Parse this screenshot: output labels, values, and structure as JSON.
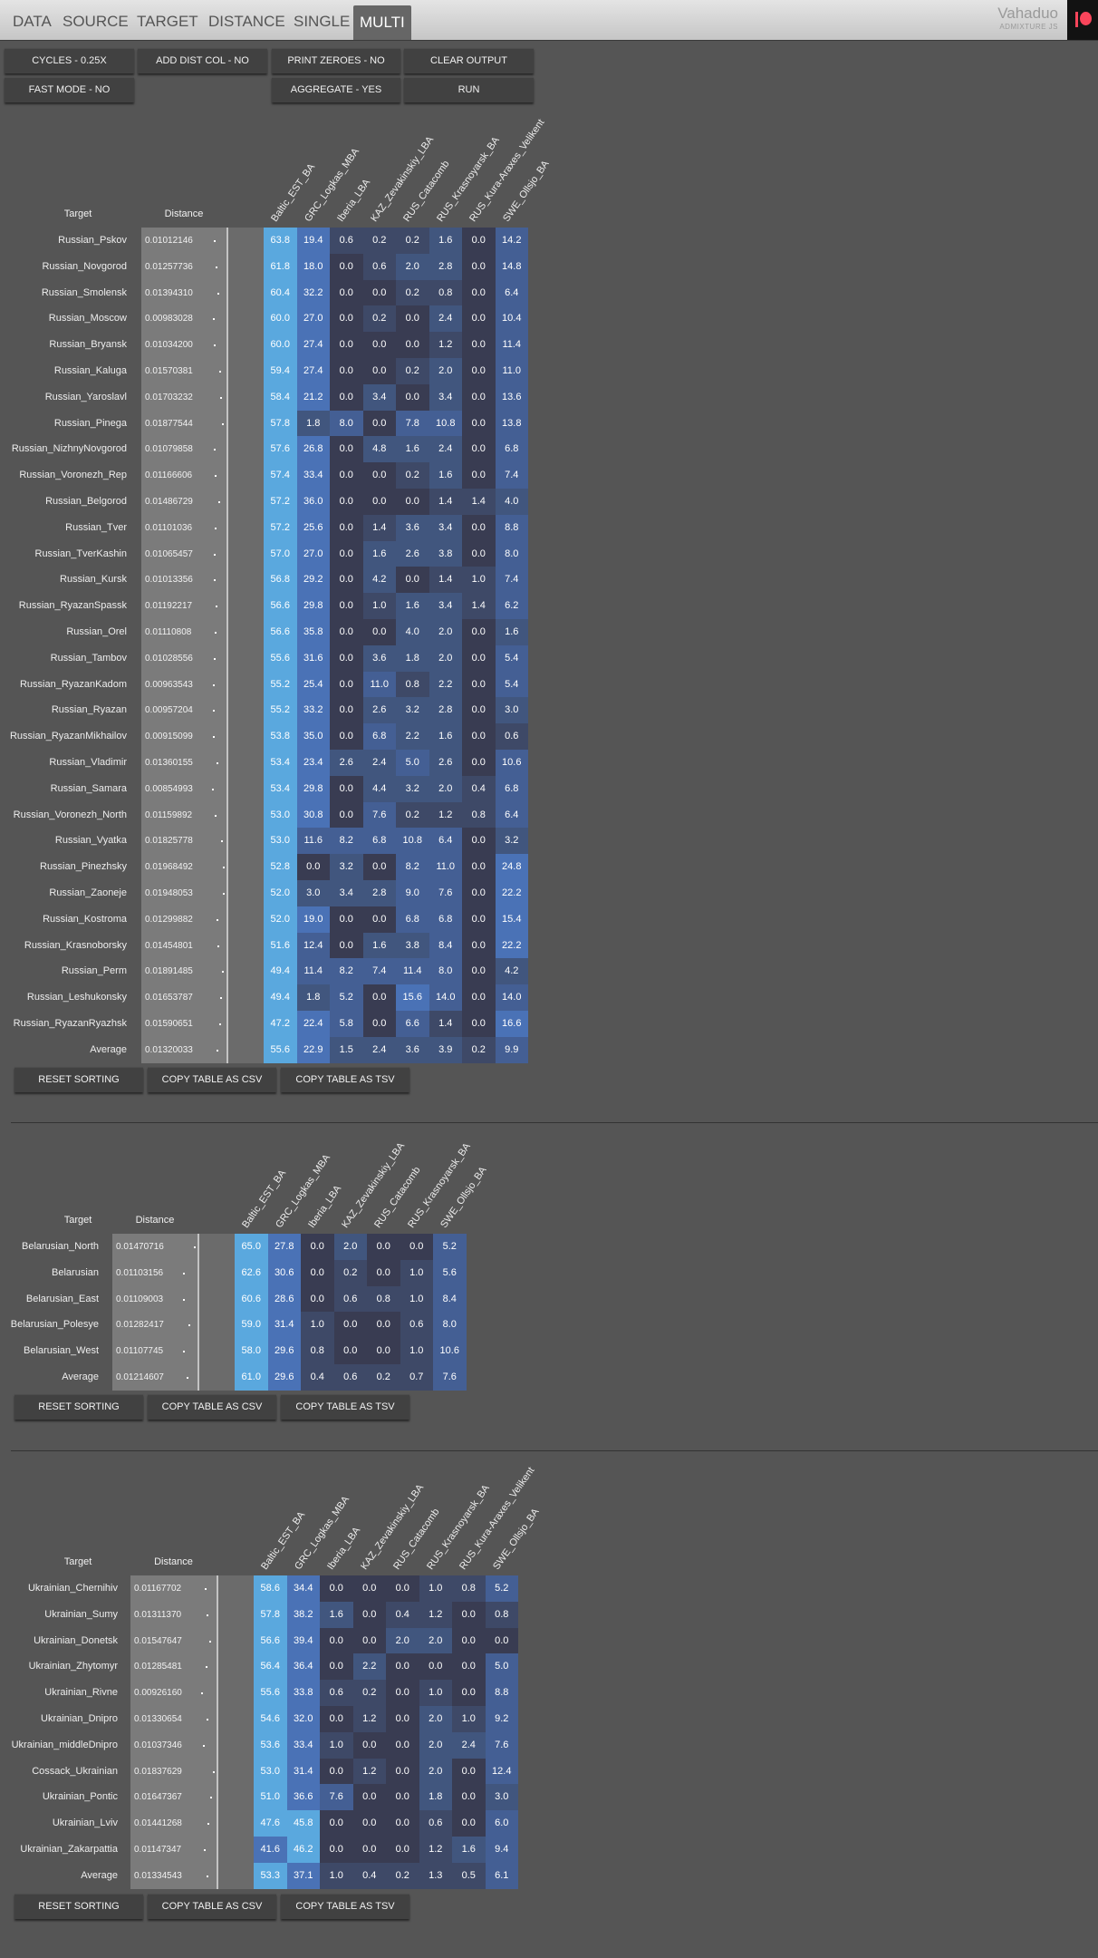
{
  "nav": {
    "tabs": [
      "DATA",
      "SOURCE",
      "TARGET",
      "DISTANCE",
      "SINGLE",
      "MULTI"
    ],
    "active": "MULTI",
    "brand": "Vahaduo",
    "brand_sub": "ADMIXTURE JS"
  },
  "controls": {
    "cycles": "CYCLES - 0.25X",
    "add_dist_col": "ADD DIST COL - NO",
    "print_zeroes": "PRINT ZEROES - NO",
    "clear_output": "CLEAR OUTPUT",
    "fast_mode": "FAST MODE - NO",
    "aggregate": "AGGREGATE - YES",
    "run": "RUN"
  },
  "labels": {
    "target": "Target",
    "distance": "Distance",
    "reset_sorting": "RESET SORTING",
    "copy_csv": "COPY TABLE AS CSV",
    "copy_tsv": "COPY TABLE AS TSV"
  },
  "colors": {
    "scale": [
      "#393c52",
      "#3e4967",
      "#41567e",
      "#445f94",
      "#4a72b6",
      "#5aa8de"
    ]
  },
  "tables": [
    {
      "columns": [
        "Baltic_EST_BA",
        "GRC_Logkas_MBA",
        "Iberia_LBA",
        "KAZ_Zevakinskiy_LBA",
        "RUS_Catacomb",
        "RUS_Krasnoyarsk_BA",
        "RUS_Kura-Araxes_Velikent",
        "SWE_Ollsjo_BA"
      ],
      "rows": [
        {
          "target": "Russian_Pskov",
          "distance": "0.01012146",
          "values": [
            "63.8",
            "19.4",
            "0.6",
            "0.2",
            "0.2",
            "1.6",
            "0.0",
            "14.2"
          ]
        },
        {
          "target": "Russian_Novgorod",
          "distance": "0.01257736",
          "values": [
            "61.8",
            "18.0",
            "0.0",
            "0.6",
            "2.0",
            "2.8",
            "0.0",
            "14.8"
          ]
        },
        {
          "target": "Russian_Smolensk",
          "distance": "0.01394310",
          "values": [
            "60.4",
            "32.2",
            "0.0",
            "0.0",
            "0.2",
            "0.8",
            "0.0",
            "6.4"
          ]
        },
        {
          "target": "Russian_Moscow",
          "distance": "0.00983028",
          "values": [
            "60.0",
            "27.0",
            "0.0",
            "0.2",
            "0.0",
            "2.4",
            "0.0",
            "10.4"
          ]
        },
        {
          "target": "Russian_Bryansk",
          "distance": "0.01034200",
          "values": [
            "60.0",
            "27.4",
            "0.0",
            "0.0",
            "0.0",
            "1.2",
            "0.0",
            "11.4"
          ]
        },
        {
          "target": "Russian_Kaluga",
          "distance": "0.01570381",
          "values": [
            "59.4",
            "27.4",
            "0.0",
            "0.0",
            "0.2",
            "2.0",
            "0.0",
            "11.0"
          ]
        },
        {
          "target": "Russian_Yaroslavl",
          "distance": "0.01703232",
          "values": [
            "58.4",
            "21.2",
            "0.0",
            "3.4",
            "0.0",
            "3.4",
            "0.0",
            "13.6"
          ]
        },
        {
          "target": "Russian_Pinega",
          "distance": "0.01877544",
          "values": [
            "57.8",
            "1.8",
            "8.0",
            "0.0",
            "7.8",
            "10.8",
            "0.0",
            "13.8"
          ]
        },
        {
          "target": "Russian_NizhnyNovgorod",
          "distance": "0.01079858",
          "values": [
            "57.6",
            "26.8",
            "0.0",
            "4.8",
            "1.6",
            "2.4",
            "0.0",
            "6.8"
          ]
        },
        {
          "target": "Russian_Voronezh_Rep",
          "distance": "0.01166606",
          "values": [
            "57.4",
            "33.4",
            "0.0",
            "0.0",
            "0.2",
            "1.6",
            "0.0",
            "7.4"
          ]
        },
        {
          "target": "Russian_Belgorod",
          "distance": "0.01486729",
          "values": [
            "57.2",
            "36.0",
            "0.0",
            "0.0",
            "0.0",
            "1.4",
            "1.4",
            "4.0"
          ]
        },
        {
          "target": "Russian_Tver",
          "distance": "0.01101036",
          "values": [
            "57.2",
            "25.6",
            "0.0",
            "1.4",
            "3.6",
            "3.4",
            "0.0",
            "8.8"
          ]
        },
        {
          "target": "Russian_TverKashin",
          "distance": "0.01065457",
          "values": [
            "57.0",
            "27.0",
            "0.0",
            "1.6",
            "2.6",
            "3.8",
            "0.0",
            "8.0"
          ]
        },
        {
          "target": "Russian_Kursk",
          "distance": "0.01013356",
          "values": [
            "56.8",
            "29.2",
            "0.0",
            "4.2",
            "0.0",
            "1.4",
            "1.0",
            "7.4"
          ]
        },
        {
          "target": "Russian_RyazanSpassk",
          "distance": "0.01192217",
          "values": [
            "56.6",
            "29.8",
            "0.0",
            "1.0",
            "1.6",
            "3.4",
            "1.4",
            "6.2"
          ]
        },
        {
          "target": "Russian_Orel",
          "distance": "0.01110808",
          "values": [
            "56.6",
            "35.8",
            "0.0",
            "0.0",
            "4.0",
            "2.0",
            "0.0",
            "1.6"
          ]
        },
        {
          "target": "Russian_Tambov",
          "distance": "0.01028556",
          "values": [
            "55.6",
            "31.6",
            "0.0",
            "3.6",
            "1.8",
            "2.0",
            "0.0",
            "5.4"
          ]
        },
        {
          "target": "Russian_RyazanKadom",
          "distance": "0.00963543",
          "values": [
            "55.2",
            "25.4",
            "0.0",
            "11.0",
            "0.8",
            "2.2",
            "0.0",
            "5.4"
          ]
        },
        {
          "target": "Russian_Ryazan",
          "distance": "0.00957204",
          "values": [
            "55.2",
            "33.2",
            "0.0",
            "2.6",
            "3.2",
            "2.8",
            "0.0",
            "3.0"
          ]
        },
        {
          "target": "Russian_RyazanMikhailov",
          "distance": "0.00915099",
          "values": [
            "53.8",
            "35.0",
            "0.0",
            "6.8",
            "2.2",
            "1.6",
            "0.0",
            "0.6"
          ]
        },
        {
          "target": "Russian_Vladimir",
          "distance": "0.01360155",
          "values": [
            "53.4",
            "23.4",
            "2.6",
            "2.4",
            "5.0",
            "2.6",
            "0.0",
            "10.6"
          ]
        },
        {
          "target": "Russian_Samara",
          "distance": "0.00854993",
          "values": [
            "53.4",
            "29.8",
            "0.0",
            "4.4",
            "3.2",
            "2.0",
            "0.4",
            "6.8"
          ]
        },
        {
          "target": "Russian_Voronezh_North",
          "distance": "0.01159892",
          "values": [
            "53.0",
            "30.8",
            "0.0",
            "7.6",
            "0.2",
            "1.2",
            "0.8",
            "6.4"
          ]
        },
        {
          "target": "Russian_Vyatka",
          "distance": "0.01825778",
          "values": [
            "53.0",
            "11.6",
            "8.2",
            "6.8",
            "10.8",
            "6.4",
            "0.0",
            "3.2"
          ]
        },
        {
          "target": "Russian_Pinezhsky",
          "distance": "0.01968492",
          "values": [
            "52.8",
            "0.0",
            "3.2",
            "0.0",
            "8.2",
            "11.0",
            "0.0",
            "24.8"
          ]
        },
        {
          "target": "Russian_Zaoneje",
          "distance": "0.01948053",
          "values": [
            "52.0",
            "3.0",
            "3.4",
            "2.8",
            "9.0",
            "7.6",
            "0.0",
            "22.2"
          ]
        },
        {
          "target": "Russian_Kostroma",
          "distance": "0.01299882",
          "values": [
            "52.0",
            "19.0",
            "0.0",
            "0.0",
            "6.8",
            "6.8",
            "0.0",
            "15.4"
          ]
        },
        {
          "target": "Russian_Krasnoborsky",
          "distance": "0.01454801",
          "values": [
            "51.6",
            "12.4",
            "0.0",
            "1.6",
            "3.8",
            "8.4",
            "0.0",
            "22.2"
          ]
        },
        {
          "target": "Russian_Perm",
          "distance": "0.01891485",
          "values": [
            "49.4",
            "11.4",
            "8.2",
            "7.4",
            "11.4",
            "8.0",
            "0.0",
            "4.2"
          ]
        },
        {
          "target": "Russian_Leshukonsky",
          "distance": "0.01653787",
          "values": [
            "49.4",
            "1.8",
            "5.2",
            "0.0",
            "15.6",
            "14.0",
            "0.0",
            "14.0"
          ]
        },
        {
          "target": "Russian_RyazanRyazhsk",
          "distance": "0.01590651",
          "values": [
            "47.2",
            "22.4",
            "5.8",
            "0.0",
            "6.6",
            "1.4",
            "0.0",
            "16.6"
          ]
        },
        {
          "target": "Average",
          "distance": "0.01320033",
          "values": [
            "55.6",
            "22.9",
            "1.5",
            "2.4",
            "3.6",
            "3.9",
            "0.2",
            "9.9"
          ]
        }
      ]
    },
    {
      "columns": [
        "Baltic_EST_BA",
        "GRC_Logkas_MBA",
        "Iberia_LBA",
        "KAZ_Zevakinskiy_LBA",
        "RUS_Catacomb",
        "RUS_Krasnoyarsk_BA",
        "SWE_Ollsjo_BA"
      ],
      "rows": [
        {
          "target": "Belarusian_North",
          "distance": "0.01470716",
          "values": [
            "65.0",
            "27.8",
            "0.0",
            "2.0",
            "0.0",
            "0.0",
            "5.2"
          ]
        },
        {
          "target": "Belarusian",
          "distance": "0.01103156",
          "values": [
            "62.6",
            "30.6",
            "0.0",
            "0.2",
            "0.0",
            "1.0",
            "5.6"
          ]
        },
        {
          "target": "Belarusian_East",
          "distance": "0.01109003",
          "values": [
            "60.6",
            "28.6",
            "0.0",
            "0.6",
            "0.8",
            "1.0",
            "8.4"
          ]
        },
        {
          "target": "Belarusian_Polesye",
          "distance": "0.01282417",
          "values": [
            "59.0",
            "31.4",
            "1.0",
            "0.0",
            "0.0",
            "0.6",
            "8.0"
          ]
        },
        {
          "target": "Belarusian_West",
          "distance": "0.01107745",
          "values": [
            "58.0",
            "29.6",
            "0.8",
            "0.0",
            "0.0",
            "1.0",
            "10.6"
          ]
        },
        {
          "target": "Average",
          "distance": "0.01214607",
          "values": [
            "61.0",
            "29.6",
            "0.4",
            "0.6",
            "0.2",
            "0.7",
            "7.6"
          ]
        }
      ]
    },
    {
      "columns": [
        "Baltic_EST_BA",
        "GRC_Logkas_MBA",
        "Iberia_LBA",
        "KAZ_Zevakinskiy_LBA",
        "RUS_Catacomb",
        "RUS_Krasnoyarsk_BA",
        "RUS_Kura-Araxes_Velikent",
        "SWE_Ollsjo_BA"
      ],
      "rows": [
        {
          "target": "Ukrainian_Chernihiv",
          "distance": "0.01167702",
          "values": [
            "58.6",
            "34.4",
            "0.0",
            "0.0",
            "0.0",
            "1.0",
            "0.8",
            "5.2"
          ]
        },
        {
          "target": "Ukrainian_Sumy",
          "distance": "0.01311370",
          "values": [
            "57.8",
            "38.2",
            "1.6",
            "0.0",
            "0.4",
            "1.2",
            "0.0",
            "0.8"
          ]
        },
        {
          "target": "Ukrainian_Donetsk",
          "distance": "0.01547647",
          "values": [
            "56.6",
            "39.4",
            "0.0",
            "0.0",
            "2.0",
            "2.0",
            "0.0",
            "0.0"
          ]
        },
        {
          "target": "Ukrainian_Zhytomyr",
          "distance": "0.01285481",
          "values": [
            "56.4",
            "36.4",
            "0.0",
            "2.2",
            "0.0",
            "0.0",
            "0.0",
            "5.0"
          ]
        },
        {
          "target": "Ukrainian_Rivne",
          "distance": "0.00926160",
          "values": [
            "55.6",
            "33.8",
            "0.6",
            "0.2",
            "0.0",
            "1.0",
            "0.0",
            "8.8"
          ]
        },
        {
          "target": "Ukrainian_Dnipro",
          "distance": "0.01330654",
          "values": [
            "54.6",
            "32.0",
            "0.0",
            "1.2",
            "0.0",
            "2.0",
            "1.0",
            "9.2"
          ]
        },
        {
          "target": "Ukrainian_middleDnipro",
          "distance": "0.01037346",
          "values": [
            "53.6",
            "33.4",
            "1.0",
            "0.0",
            "0.0",
            "2.0",
            "2.4",
            "7.6"
          ]
        },
        {
          "target": "Cossack_Ukrainian",
          "distance": "0.01837629",
          "values": [
            "53.0",
            "31.4",
            "0.0",
            "1.2",
            "0.0",
            "2.0",
            "0.0",
            "12.4"
          ]
        },
        {
          "target": "Ukrainian_Pontic",
          "distance": "0.01647367",
          "values": [
            "51.0",
            "36.6",
            "7.6",
            "0.0",
            "0.0",
            "1.8",
            "0.0",
            "3.0"
          ]
        },
        {
          "target": "Ukrainian_Lviv",
          "distance": "0.01441268",
          "values": [
            "47.6",
            "45.8",
            "0.0",
            "0.0",
            "0.0",
            "0.6",
            "0.0",
            "6.0"
          ]
        },
        {
          "target": "Ukrainian_Zakarpattia",
          "distance": "0.01147347",
          "values": [
            "41.6",
            "46.2",
            "0.0",
            "0.0",
            "0.0",
            "1.2",
            "1.6",
            "9.4"
          ]
        },
        {
          "target": "Average",
          "distance": "0.01334543",
          "values": [
            "53.3",
            "37.1",
            "1.0",
            "0.4",
            "0.2",
            "1.3",
            "0.5",
            "6.1"
          ]
        }
      ]
    }
  ]
}
